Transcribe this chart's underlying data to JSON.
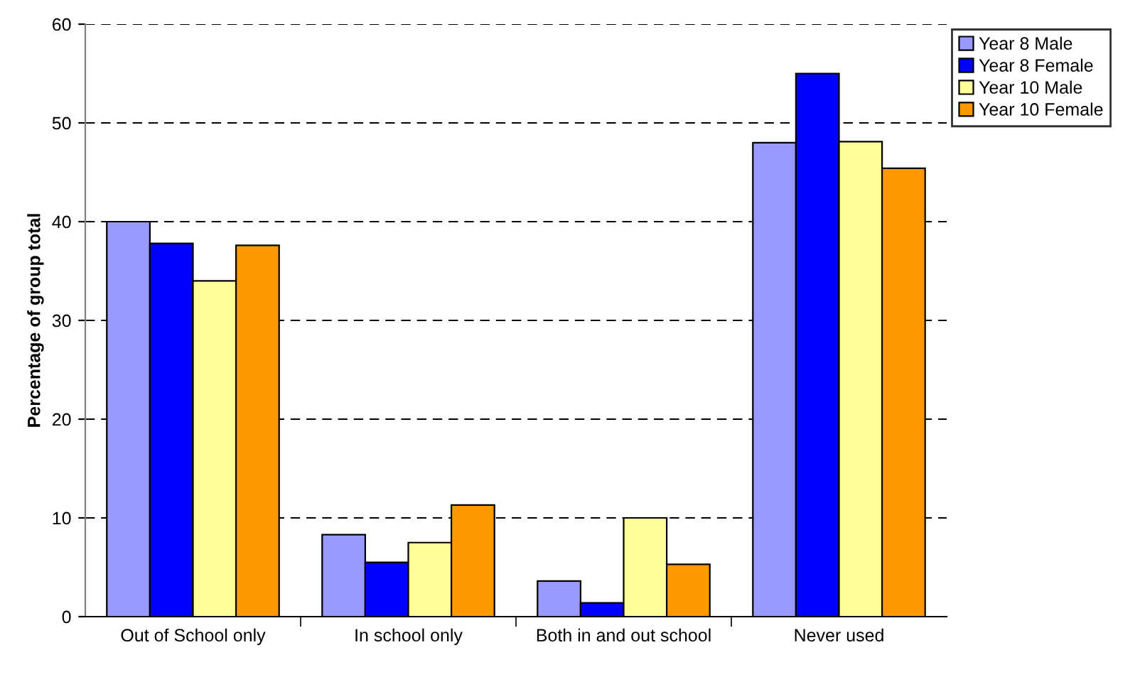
{
  "chart_data": {
    "type": "bar",
    "ylabel": "Percentage of group total",
    "categories": [
      "Out of School only",
      "In school only",
      "Both in and out school",
      "Never used"
    ],
    "series": [
      {
        "name": "Year 8 Male",
        "color": "#9999ff",
        "values": [
          40.0,
          8.3,
          3.6,
          48.0
        ]
      },
      {
        "name": "Year 8 Female",
        "color": "#0000ff",
        "values": [
          37.8,
          5.5,
          1.4,
          55.0
        ]
      },
      {
        "name": "Year 10 Male",
        "color": "#ffff99",
        "values": [
          34.0,
          7.5,
          10.0,
          48.1
        ]
      },
      {
        "name": "Year 10 Female",
        "color": "#ff9900",
        "values": [
          37.6,
          11.3,
          5.3,
          45.4
        ]
      }
    ],
    "ylim": [
      0,
      60
    ],
    "yticks": [
      0,
      10,
      20,
      30,
      40,
      50,
      60
    ],
    "grid": "y",
    "legend": "top right"
  }
}
